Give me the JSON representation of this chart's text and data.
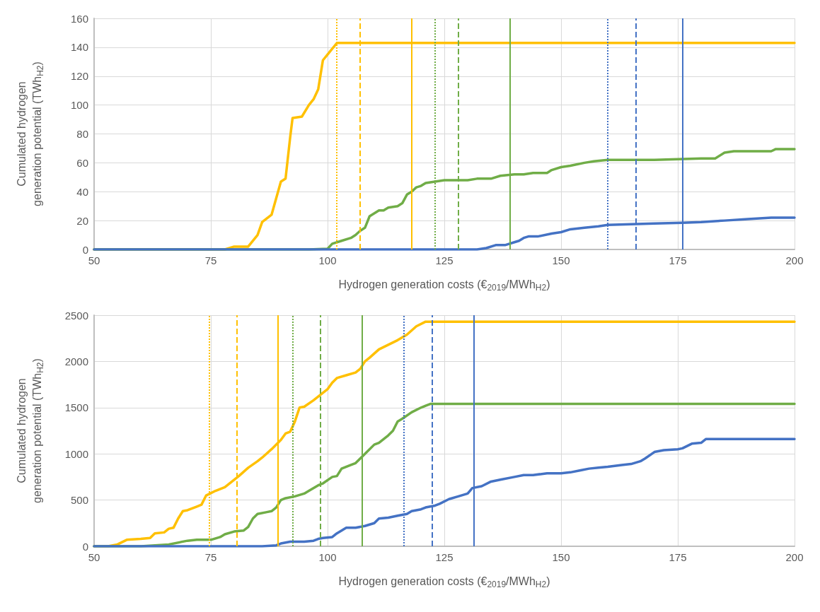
{
  "chart_data": [
    {
      "type": "line",
      "xlabel": "Hydrogen generation costs (€$_{2019}$/MWh$_{H2}$)",
      "ylabel": "Cumulated hydrogen generation potential (TWh$_{H2}$)",
      "xlim": [
        50,
        200
      ],
      "xticks": [
        50,
        75,
        100,
        125,
        150,
        175,
        200
      ],
      "ylim": [
        0,
        160
      ],
      "yticks": [
        0,
        20,
        40,
        60,
        80,
        100,
        120,
        140,
        160
      ],
      "grid": true,
      "marker": "none",
      "line_style": "solid",
      "series": [
        {
          "color": "#ffc000",
          "x": [
            50,
            78,
            80,
            83,
            85,
            86,
            88,
            90,
            91,
            92,
            92.5,
            94.5,
            96,
            97,
            98,
            99,
            100,
            102,
            200
          ],
          "values": [
            0,
            0,
            2,
            2,
            10,
            19,
            24,
            47,
            49,
            78,
            91,
            92,
            100,
            104,
            111,
            131,
            135,
            143,
            143
          ]
        },
        {
          "color": "#70ad47",
          "x": [
            50,
            96,
            100,
            101,
            103,
            105,
            106,
            107,
            108,
            109,
            111,
            112,
            113,
            115,
            116,
            117,
            118,
            119,
            120,
            121,
            123,
            125,
            130,
            132,
            135,
            137,
            140,
            142,
            144,
            147,
            148,
            150,
            152,
            155,
            157,
            160,
            170,
            180,
            183,
            185,
            187,
            195,
            196,
            200
          ],
          "values": [
            0,
            0,
            0.5,
            4,
            6,
            8,
            10,
            13,
            15,
            23,
            27,
            27,
            29,
            30,
            32,
            38,
            40,
            43,
            44,
            46,
            47,
            48,
            48,
            49,
            49,
            51,
            52,
            52,
            53,
            53,
            55,
            57,
            58,
            60,
            61,
            62,
            62,
            63,
            63,
            67,
            68,
            68,
            69.5,
            69.5
          ]
        },
        {
          "color": "#4472c4",
          "x": [
            50,
            132,
            134,
            136,
            138,
            140,
            141,
            142,
            143,
            145,
            148,
            150,
            152,
            155,
            158,
            160,
            165,
            170,
            176,
            180,
            185,
            190,
            195,
            200
          ],
          "values": [
            0,
            0,
            1,
            3,
            3,
            5,
            6,
            8,
            9,
            9,
            11,
            12,
            14,
            15,
            16,
            17,
            17.5,
            18,
            18.5,
            19,
            20,
            21,
            22,
            22
          ]
        }
      ],
      "ref_lines": [
        {
          "axis": "x",
          "value": 102,
          "color": "#ffc000",
          "line_style": "dotted"
        },
        {
          "axis": "x",
          "value": 107,
          "color": "#ffc000",
          "line_style": "dashed"
        },
        {
          "axis": "x",
          "value": 118,
          "color": "#ffc000",
          "line_style": "solid"
        },
        {
          "axis": "x",
          "value": 123,
          "color": "#70ad47",
          "line_style": "dotted"
        },
        {
          "axis": "x",
          "value": 128,
          "color": "#70ad47",
          "line_style": "dashed"
        },
        {
          "axis": "x",
          "value": 139,
          "color": "#70ad47",
          "line_style": "solid"
        },
        {
          "axis": "x",
          "value": 160,
          "color": "#4472c4",
          "line_style": "dotted"
        },
        {
          "axis": "x",
          "value": 166,
          "color": "#4472c4",
          "line_style": "dashed"
        },
        {
          "axis": "x",
          "value": 176,
          "color": "#4472c4",
          "line_style": "solid"
        }
      ]
    },
    {
      "type": "line",
      "xlabel": "Hydrogen generation costs (€$_{2019}$/MWh$_{H2}$)",
      "ylabel": "Cumulated hydrogen generation potential (TWh$_{H2}$)",
      "xlim": [
        50,
        200
      ],
      "xticks": [
        50,
        75,
        100,
        125,
        150,
        175,
        200
      ],
      "ylim": [
        0,
        2500
      ],
      "yticks": [
        0,
        500,
        1000,
        1500,
        2000,
        2500
      ],
      "grid": true,
      "marker": "none",
      "line_style": "solid",
      "series": [
        {
          "color": "#ffc000",
          "x": [
            50,
            53,
            55,
            57,
            60,
            62,
            63,
            65,
            66,
            67,
            68,
            69,
            70,
            72,
            73,
            74,
            76,
            78,
            80,
            81,
            83,
            85,
            86,
            88,
            90,
            91,
            92,
            93,
            94,
            95,
            97,
            98,
            100,
            101,
            102,
            104,
            106,
            107,
            108,
            109,
            111,
            113,
            115,
            117,
            119,
            121,
            200
          ],
          "values": [
            0,
            0,
            20,
            70,
            80,
            90,
            140,
            150,
            190,
            200,
            300,
            380,
            390,
            430,
            450,
            550,
            600,
            640,
            720,
            760,
            850,
            920,
            960,
            1050,
            1150,
            1220,
            1240,
            1350,
            1500,
            1510,
            1580,
            1620,
            1700,
            1770,
            1820,
            1850,
            1880,
            1920,
            2000,
            2040,
            2130,
            2180,
            2230,
            2290,
            2380,
            2430,
            2430
          ]
        },
        {
          "color": "#70ad47",
          "x": [
            50,
            60,
            63,
            66,
            70,
            72,
            75,
            77,
            78,
            80,
            82,
            83,
            84,
            85,
            87,
            88,
            89,
            90,
            91,
            93,
            95,
            96,
            98,
            99,
            101,
            102,
            103,
            105,
            106,
            108,
            110,
            111,
            113,
            114,
            115,
            116,
            118,
            120,
            121,
            122,
            200
          ],
          "values": [
            0,
            0,
            10,
            20,
            60,
            70,
            70,
            100,
            130,
            160,
            170,
            210,
            300,
            350,
            370,
            380,
            420,
            500,
            520,
            540,
            570,
            600,
            660,
            680,
            750,
            760,
            840,
            880,
            900,
            1000,
            1100,
            1120,
            1200,
            1250,
            1350,
            1380,
            1450,
            1500,
            1520,
            1540,
            1540
          ]
        },
        {
          "color": "#4472c4",
          "x": [
            50,
            86,
            89,
            90,
            92,
            95,
            97,
            98,
            99,
            101,
            102,
            104,
            106,
            108,
            110,
            111,
            113,
            115,
            117,
            118,
            120,
            121,
            123,
            124,
            126,
            128,
            130,
            131,
            133,
            135,
            137,
            140,
            142,
            144,
            147,
            150,
            152,
            154,
            156,
            158,
            160,
            163,
            165,
            167,
            168,
            170,
            172,
            175,
            176,
            178,
            180,
            181,
            200
          ],
          "values": [
            0,
            0,
            10,
            30,
            50,
            50,
            60,
            80,
            90,
            100,
            140,
            200,
            200,
            220,
            250,
            300,
            310,
            330,
            350,
            380,
            400,
            420,
            440,
            460,
            510,
            540,
            570,
            630,
            650,
            700,
            720,
            750,
            770,
            770,
            790,
            790,
            800,
            820,
            840,
            850,
            860,
            880,
            890,
            920,
            950,
            1020,
            1040,
            1050,
            1060,
            1110,
            1120,
            1160,
            1160
          ]
        }
      ],
      "ref_lines": [
        {
          "axis": "x",
          "value": 74.6,
          "color": "#ffc000",
          "line_style": "dotted"
        },
        {
          "axis": "x",
          "value": 80.6,
          "color": "#ffc000",
          "line_style": "dashed"
        },
        {
          "axis": "x",
          "value": 89.4,
          "color": "#ffc000",
          "line_style": "solid"
        },
        {
          "axis": "x",
          "value": 92.5,
          "color": "#70ad47",
          "line_style": "dotted"
        },
        {
          "axis": "x",
          "value": 98.4,
          "color": "#70ad47",
          "line_style": "dashed"
        },
        {
          "axis": "x",
          "value": 107.4,
          "color": "#70ad47",
          "line_style": "solid"
        },
        {
          "axis": "x",
          "value": 116.4,
          "color": "#4472c4",
          "line_style": "dotted"
        },
        {
          "axis": "x",
          "value": 122.4,
          "color": "#4472c4",
          "line_style": "dashed"
        },
        {
          "axis": "x",
          "value": 131.4,
          "color": "#4472c4",
          "line_style": "solid"
        }
      ]
    }
  ]
}
